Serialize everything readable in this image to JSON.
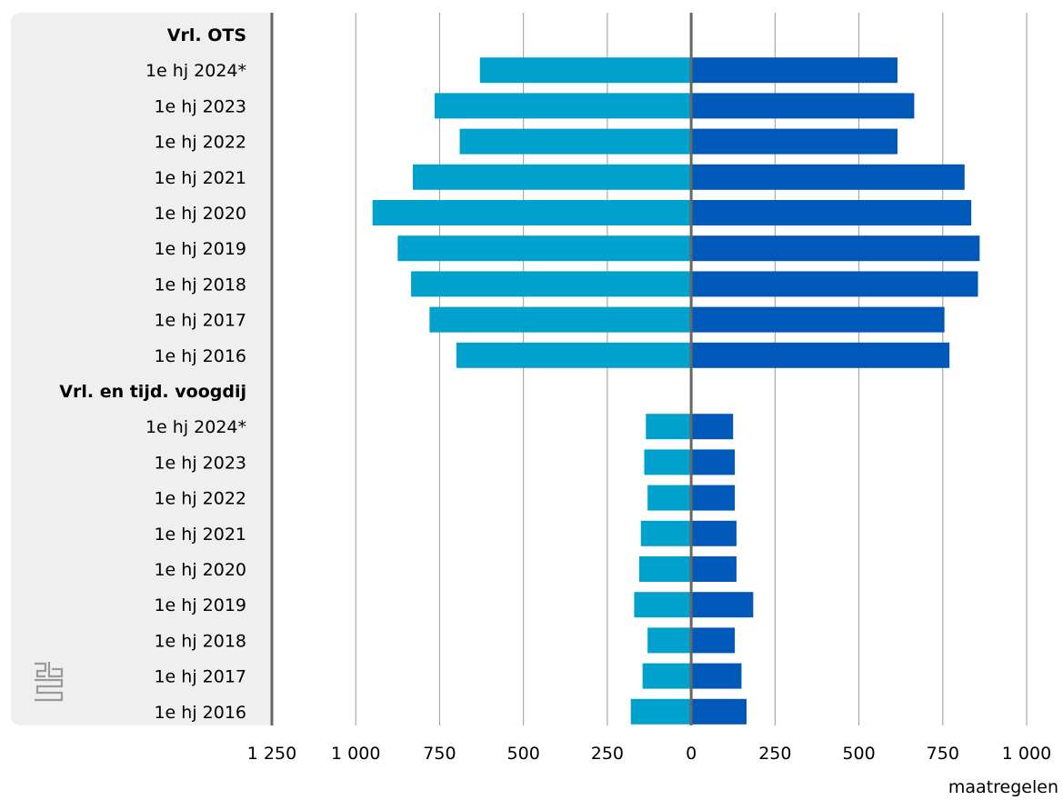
{
  "chart_data": {
    "type": "bar",
    "orientation": "horizontal-diverging",
    "x_unit_label": "maatregelen",
    "x_ticks": [
      "1 250",
      "1 000",
      "750",
      "500",
      "250",
      "0",
      "250",
      "500",
      "750",
      "1 000"
    ],
    "x_range": [
      -1250,
      1000
    ],
    "grid": true,
    "colors": {
      "left": "#00a1cd",
      "right": "#0058b8",
      "axis": "#666666",
      "grid": "#9a9a9a",
      "label_panel": "#efefef"
    },
    "groups": [
      {
        "header": "Vrl. OTS",
        "rows": [
          {
            "label": "1e hj 2024*",
            "left": 630,
            "right": 615
          },
          {
            "label": "1e hj 2023",
            "left": 765,
            "right": 665
          },
          {
            "label": "1e hj 2022",
            "left": 690,
            "right": 615
          },
          {
            "label": "1e hj 2021",
            "left": 830,
            "right": 815
          },
          {
            "label": "1e hj 2020",
            "left": 950,
            "right": 835
          },
          {
            "label": "1e hj 2019",
            "left": 875,
            "right": 860
          },
          {
            "label": "1e hj 2018",
            "left": 835,
            "right": 855
          },
          {
            "label": "1e hj 2017",
            "left": 780,
            "right": 755
          },
          {
            "label": "1e hj 2016",
            "left": 700,
            "right": 770
          }
        ]
      },
      {
        "header": "Vrl. en tijd. voogdij",
        "rows": [
          {
            "label": "1e hj 2024*",
            "left": 135,
            "right": 125
          },
          {
            "label": "1e hj 2023",
            "left": 140,
            "right": 130
          },
          {
            "label": "1e hj 2022",
            "left": 130,
            "right": 130
          },
          {
            "label": "1e hj 2021",
            "left": 150,
            "right": 135
          },
          {
            "label": "1e hj 2020",
            "left": 155,
            "right": 135
          },
          {
            "label": "1e hj 2019",
            "left": 170,
            "right": 185
          },
          {
            "label": "1e hj 2018",
            "left": 130,
            "right": 130
          },
          {
            "label": "1e hj 2017",
            "left": 145,
            "right": 150
          },
          {
            "label": "1e hj 2016",
            "left": 180,
            "right": 165
          }
        ]
      }
    ]
  },
  "logo": {
    "icon": "cbs-logo-icon"
  }
}
